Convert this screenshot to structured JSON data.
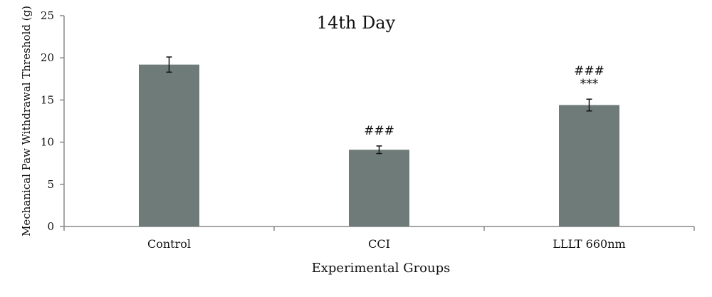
{
  "chart_data": {
    "type": "bar",
    "title": "14th Day",
    "xlabel": "Experimental Groups",
    "ylabel": "Mechanical Paw Withdrawal Threshold (g)",
    "ylim": [
      0,
      25
    ],
    "yticks": [
      0,
      5,
      10,
      15,
      20,
      25
    ],
    "yticks_labels": [
      "0",
      "5",
      "10",
      "15",
      "20",
      "25"
    ],
    "categories": [
      "Control",
      "CCI",
      "LLLT 660nm"
    ],
    "values": [
      19.2,
      9.1,
      14.4
    ],
    "errors": [
      0.9,
      0.45,
      0.7
    ],
    "annotations": [
      [],
      [
        "###"
      ],
      [
        "###",
        "***"
      ]
    ],
    "bar_color": "#6e7b78",
    "axis_color": "#888888",
    "grid": false,
    "legend": "none"
  }
}
